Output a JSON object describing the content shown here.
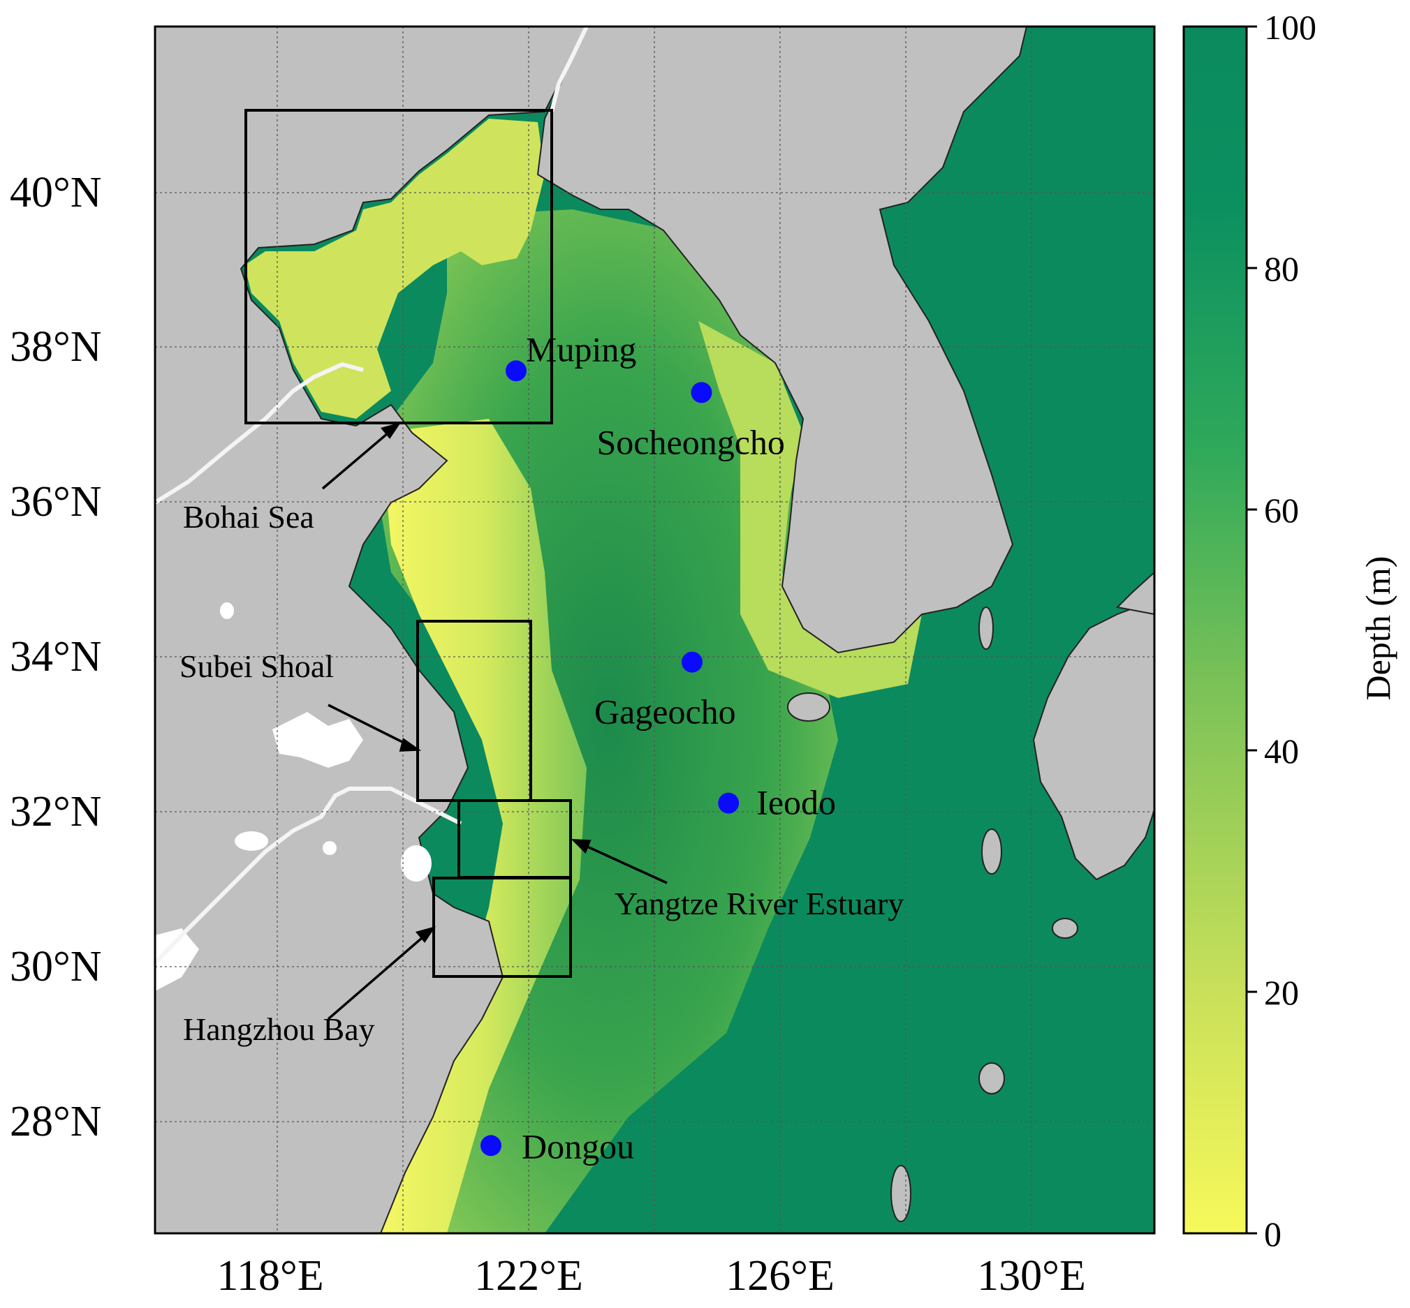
{
  "map": {
    "x_ticks": [
      "118°E",
      "122°E",
      "126°E",
      "130°E"
    ],
    "y_ticks": [
      "40°N",
      "38°N",
      "36°N",
      "34°N",
      "32°N",
      "30°N",
      "28°N"
    ],
    "sites": [
      {
        "name": "Muping",
        "lon": 121.8,
        "lat": 37.7
      },
      {
        "name": "Socheongcho",
        "lon": 124.75,
        "lat": 37.42
      },
      {
        "name": "Gageocho",
        "lon": 124.6,
        "lat": 33.94
      },
      {
        "name": "Ieodo",
        "lon": 125.18,
        "lat": 32.12
      },
      {
        "name": "Dongou",
        "lon": 121.4,
        "lat": 27.7
      }
    ],
    "regions": [
      {
        "name": "Bohai Sea"
      },
      {
        "name": "Subei Shoal"
      },
      {
        "name": "Yangtze River Estuary"
      },
      {
        "name": "Hangzhou Bay"
      }
    ],
    "colorbar": {
      "title": "Depth (m)",
      "ticks": [
        "0",
        "20",
        "40",
        "60",
        "80",
        "100"
      ],
      "color_low": "#f7f95a",
      "color_mid": "#34a853",
      "color_high": "#0b8a5e"
    },
    "colors": {
      "land": "#c0c0c0",
      "deep_sea": "#0b8a5e",
      "site_marker": "#0a0aff",
      "river": "#f4f4f4"
    }
  }
}
